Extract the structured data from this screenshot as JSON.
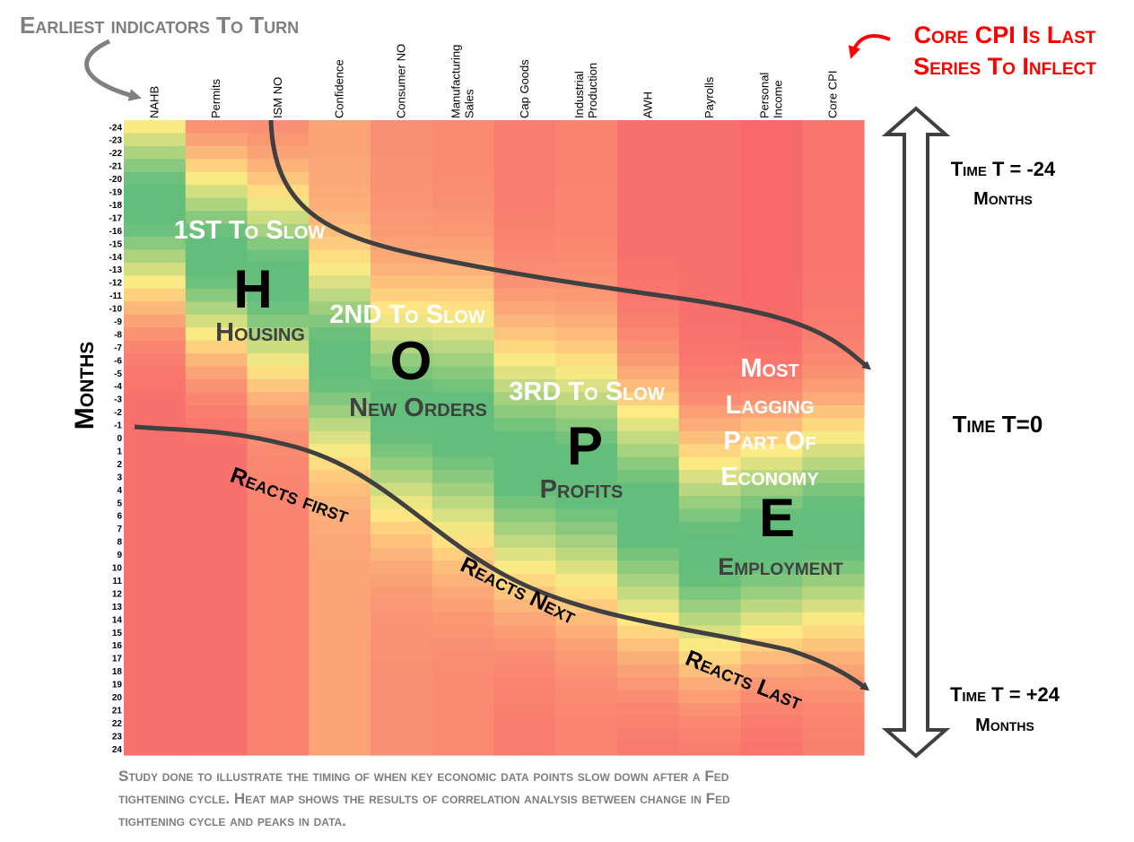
{
  "chart_data": {
    "type": "heatmap",
    "columns": [
      "NAHB",
      "Permits",
      "ISM NO",
      "Confidence",
      "Consumer NO",
      "Manufacturing Sales",
      "Cap Goods",
      "Industrial Production",
      "AWH",
      "Payrolls",
      "Personal Income",
      "Core CPI"
    ],
    "rows": [
      "-24",
      "-23",
      "-22",
      "-21",
      "-20",
      "-19",
      "-18",
      "-17",
      "-16",
      "-15",
      "-14",
      "-13",
      "-12",
      "-11",
      "-10",
      "-9",
      "-8",
      "-7",
      "-6",
      "-5",
      "-4",
      "-3",
      "-2",
      "-1",
      "0",
      "1",
      "2",
      "3",
      "4",
      "5",
      "6",
      "7",
      "8",
      "9",
      "10",
      "11",
      "12",
      "13",
      "14",
      "15",
      "16",
      "17",
      "18",
      "19",
      "20",
      "21",
      "22",
      "23",
      "24"
    ],
    "ylabel": "Months",
    "color_scale": {
      "high": "#63be7b",
      "mid": "#ffeb84",
      "low": "#f8696b"
    },
    "annotations": {
      "top_left": "Earliest indicators To Turn",
      "top_right_line1": "Core CPI Is Last",
      "top_right_line2": "Series To Inflect",
      "time_top_line1": "Time T = -24",
      "time_top_line2": "Months",
      "time_mid": "Time T=0",
      "time_bottom_line1": "Time T = +24",
      "time_bottom_line2": "Months",
      "first_slow": "1ST To Slow",
      "second_slow": "2ND To Slow",
      "third_slow": "3RD To Slow",
      "letter_h": "H",
      "letter_o": "O",
      "letter_p": "P",
      "letter_e": "E",
      "housing": "Housing",
      "new_orders": "New Orders",
      "profits": "Profits",
      "most_lagging_1": "Most",
      "most_lagging_2": "Lagging",
      "most_lagging_3": "Part Of",
      "most_lagging_4": "Economy",
      "employment": "Employment",
      "reacts_first": "Reacts first",
      "reacts_next": "Reacts Next",
      "reacts_last": "Reacts Last"
    },
    "caption_lines": [
      "Study done to illustrate the timing of when key economic data points slow down after a Fed",
      "tightening cycle. Heat map shows the results of correlation analysis between change in Fed",
      "tightening cycle and peaks in data."
    ]
  }
}
